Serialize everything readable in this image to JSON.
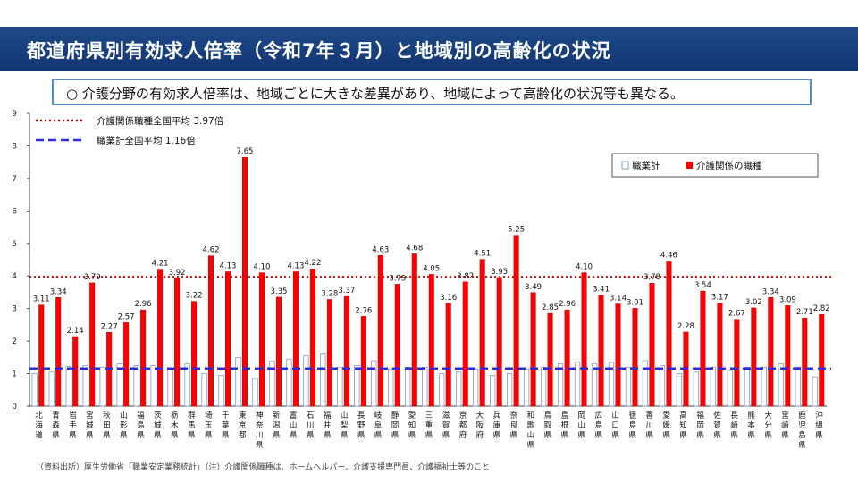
{
  "header": {
    "title": "都道府県別有効求人倍率（令和7年３月）と地域別の高齢化の状況"
  },
  "callout": {
    "text": "○ 介護分野の有効求人倍率は、地域ごとに大きな差異があり、地域によって高齢化の状況等も異なる。"
  },
  "reference_lines": {
    "care": {
      "label": "介護関係職種全国平均 3.97倍",
      "value": 3.97,
      "color": "#e00000"
    },
    "all": {
      "label": "職業計全国平均 1.16倍",
      "value": 1.16,
      "color": "#2b2bdd"
    }
  },
  "legend": {
    "all_label": "職業計",
    "care_label": "介護関係の職種"
  },
  "source_note": "（資料出所）厚生労働省「職業安定業務統計」（注）介護関係職種は、ホームヘルパー、介護支援専門員、介護福祉士等のこと",
  "chart_data": {
    "type": "bar",
    "ylim": [
      0,
      9
    ],
    "yticks": [
      0,
      1,
      2,
      3,
      4,
      5,
      6,
      7,
      8,
      9
    ],
    "grid": false,
    "legend_position": "top-right",
    "categories": [
      "北海道",
      "青森県",
      "岩手県",
      "宮城県",
      "秋田県",
      "山形県",
      "福島県",
      "茨城県",
      "栃木県",
      "群馬県",
      "埼玉県",
      "千葉県",
      "東京都",
      "神奈川県",
      "新潟県",
      "富山県",
      "石川県",
      "福井県",
      "山梨県",
      "長野県",
      "岐阜県",
      "静岡県",
      "愛知県",
      "三重県",
      "滋賀県",
      "京都府",
      "大阪府",
      "兵庫県",
      "奈良県",
      "和歌山県",
      "鳥取県",
      "島根県",
      "岡山県",
      "広島県",
      "山口県",
      "徳島県",
      "香川県",
      "愛媛県",
      "高知県",
      "福岡県",
      "佐賀県",
      "長崎県",
      "熊本県",
      "大分県",
      "宮崎県",
      "鹿児島県",
      "沖縄県"
    ],
    "series": [
      {
        "name": "職業計",
        "color": "#ffffff",
        "stroke": "#7f9ac6",
        "values": [
          1.0,
          1.05,
          1.22,
          1.25,
          1.2,
          1.3,
          1.25,
          1.25,
          1.15,
          1.3,
          1.0,
          0.95,
          1.5,
          0.85,
          1.38,
          1.45,
          1.55,
          1.6,
          1.2,
          1.25,
          1.4,
          1.15,
          1.2,
          1.2,
          1.0,
          1.05,
          1.15,
          0.95,
          1.0,
          1.15,
          1.2,
          1.3,
          1.35,
          1.3,
          1.35,
          1.2,
          1.4,
          1.25,
          1.0,
          1.05,
          1.2,
          1.1,
          1.2,
          1.2,
          1.3,
          1.2,
          0.9
        ]
      },
      {
        "name": "介護関係の職種",
        "color": "#ff0000",
        "stroke": "#c00000",
        "values": [
          3.11,
          3.34,
          2.14,
          3.79,
          2.27,
          2.57,
          2.96,
          4.21,
          3.92,
          3.22,
          4.62,
          4.13,
          7.65,
          4.1,
          3.35,
          4.13,
          4.22,
          3.28,
          3.37,
          2.76,
          4.63,
          3.75,
          4.68,
          4.05,
          3.16,
          3.82,
          4.51,
          3.95,
          5.25,
          3.49,
          2.85,
          2.96,
          4.1,
          3.41,
          3.14,
          3.01,
          3.78,
          4.46,
          2.28,
          3.54,
          3.17,
          2.67,
          3.02,
          3.34,
          3.09,
          2.71,
          2.82
        ],
        "labels": [
          "3.11",
          "3.34",
          "2.14",
          "3.79",
          "2.27",
          "2.57",
          "2.96",
          "4.21",
          "3.92",
          "3.22",
          "4.62",
          "4.13",
          "7.65",
          "4.10",
          "3.35",
          "4.13",
          "4.22",
          "3.28",
          "3.37",
          "2.76",
          "4.63",
          "3.75",
          "4.68",
          "4.05",
          "3.16",
          "3.82",
          "4.51",
          "3.95",
          "5.25",
          "3.49",
          "2.85",
          "2.96",
          "4.10",
          "3.41",
          "3.14",
          "3.01",
          "3.78",
          "4.46",
          "2.28",
          "3.54",
          "3.17",
          "2.67",
          "3.02",
          "3.34",
          "3.09",
          "2.71",
          "2.82"
        ]
      }
    ]
  }
}
